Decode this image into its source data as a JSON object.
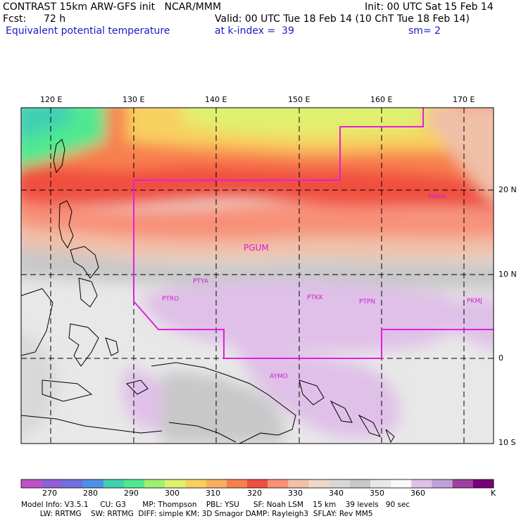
{
  "header": {
    "title": "CONTRAST 15km ARW-GFS init   NCAR/MMM",
    "init": "Init: 00 UTC Sat 15 Feb 14",
    "fcst_label": "Fcst:",
    "fcst_value": "72 h",
    "valid": "Valid: 00 UTC Tue 18 Feb 14 (10 ChT Tue 18 Feb 14)",
    "field": "Equivalent potential temperature",
    "level": "at k-index =  39",
    "smooth": "sm= 2"
  },
  "map": {
    "lon_labels": [
      "120 E",
      "130 E",
      "140 E",
      "150 E",
      "160 E",
      "170 E"
    ],
    "lat_labels": [
      "20 N",
      "10 N",
      "0",
      "10 S"
    ],
    "stations": [
      {
        "id": "PWAK"
      },
      {
        "id": "PGUM"
      },
      {
        "id": "PTYA"
      },
      {
        "id": "PTRO"
      },
      {
        "id": "PTKK"
      },
      {
        "id": "PTPN"
      },
      {
        "id": "PKMJ"
      },
      {
        "id": "AYMO"
      }
    ],
    "colors": {
      "boundary": "#e020e0",
      "station": "#d020d0"
    }
  },
  "colorbar": {
    "labels": [
      "270",
      "280",
      "290",
      "300",
      "310",
      "320",
      "330",
      "340",
      "350",
      "360"
    ],
    "unit": "K",
    "colors": [
      "#c050c8",
      "#9060d8",
      "#7070e0",
      "#5090e8",
      "#40d0b0",
      "#50e890",
      "#a0f070",
      "#e0f070",
      "#f8d060",
      "#f8b060",
      "#f88050",
      "#f05040",
      "#f89078",
      "#f0c0a8",
      "#f0d8c8",
      "#d8d8d8",
      "#c8c8c8",
      "#e8e8e8",
      "#f8f8f8",
      "#e0c0e8",
      "#c0a0d8",
      "#a040a0",
      "#780078"
    ]
  },
  "footer": {
    "line1": "Model Info: V3.5.1     CU: G3       MP: Thompson    PBL: YSU      SF: Noah LSM    15 km    39 levels   90 sec",
    "line2": "        LW: RRTMG    SW: RRTMG  DIFF: simple KM: 3D Smagor DAMP: Rayleigh3  SFLAY: Rev MM5"
  }
}
